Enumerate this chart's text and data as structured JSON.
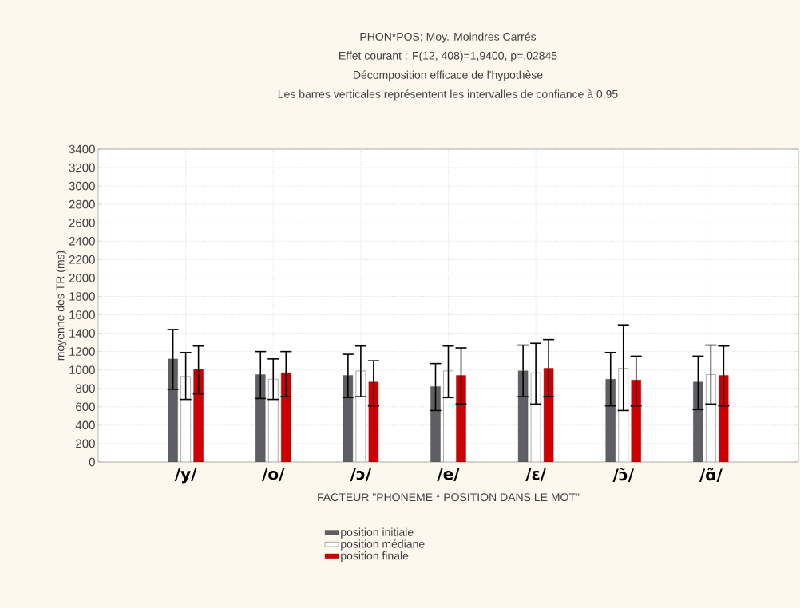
{
  "chart_data": {
    "type": "bar",
    "title": "PHON*POS; Moy. Moindres Carrés",
    "subtitle": "Effet courant : F(12, 408)=1,9400, p=,02845",
    "annotations": [
      "Décomposition efficace de l'hypothèse",
      "Les barres verticales représentent les intervalles de confiance à 0,95"
    ],
    "xlabel": "FACTEUR \"PHONEME * POSITION DANS LE MOT\"",
    "ylabel": "moyenne des TR (ms)",
    "categories": [
      "/y/",
      "/o/",
      "/ɔ/",
      "/e/",
      "/ɛ/",
      "/ɔ̃/",
      "/ɑ̃/"
    ],
    "series": [
      {
        "name": "position initiale",
        "color": "#5f5f63",
        "values": [
          1120,
          950,
          940,
          820,
          990,
          900,
          870
        ],
        "errors": [
          [
            790,
            1440
          ],
          [
            690,
            1200
          ],
          [
            700,
            1170
          ],
          [
            560,
            1070
          ],
          [
            710,
            1270
          ],
          [
            610,
            1190
          ],
          [
            570,
            1150
          ]
        ]
      },
      {
        "name": "position médiane",
        "color": "#ffffff",
        "values": [
          930,
          900,
          990,
          990,
          970,
          1020,
          950
        ],
        "errors": [
          [
            680,
            1190
          ],
          [
            680,
            1120
          ],
          [
            710,
            1260
          ],
          [
            700,
            1260
          ],
          [
            630,
            1290
          ],
          [
            560,
            1490
          ],
          [
            630,
            1270
          ]
        ]
      },
      {
        "name": "position finale",
        "color": "#cc0000",
        "values": [
          1010,
          970,
          870,
          940,
          1020,
          890,
          940
        ],
        "errors": [
          [
            740,
            1260
          ],
          [
            710,
            1200
          ],
          [
            610,
            1100
          ],
          [
            630,
            1240
          ],
          [
            710,
            1330
          ],
          [
            610,
            1150
          ],
          [
            610,
            1260
          ]
        ]
      }
    ],
    "ylim": [
      0,
      3400
    ],
    "yticks": [
      0,
      200,
      400,
      600,
      800,
      1000,
      1200,
      1400,
      1600,
      1800,
      2000,
      2200,
      2400,
      2600,
      2800,
      3000,
      3200,
      3400
    ],
    "grid": true,
    "legend": "bottom"
  }
}
